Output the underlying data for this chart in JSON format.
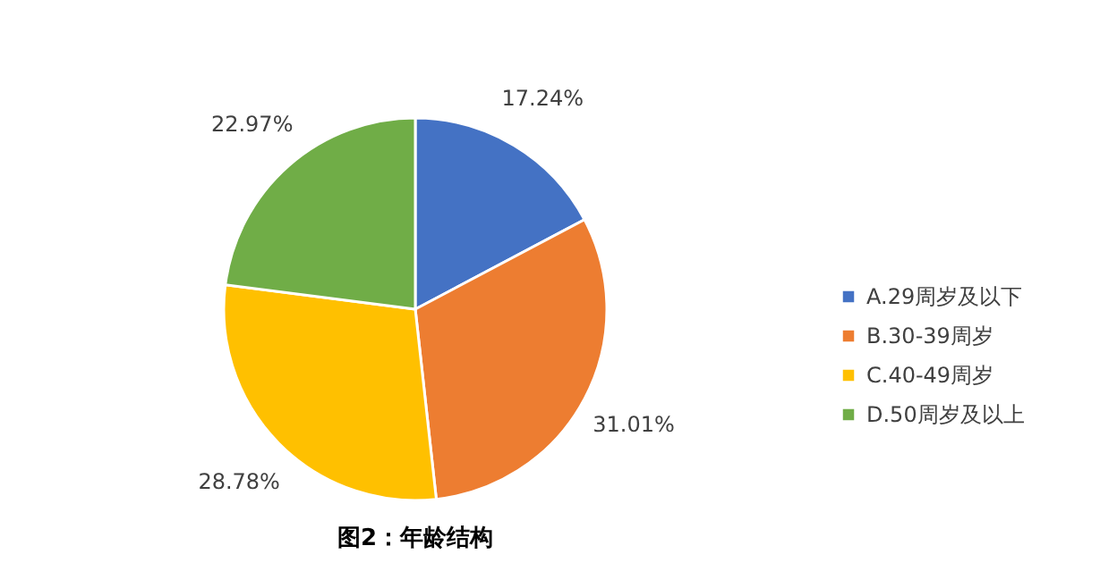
{
  "chart_data": {
    "type": "pie",
    "title": "图2：年龄结构",
    "categories": [
      "A.29周岁及以下",
      "B.30-39周岁",
      "C.40-49周岁",
      "D.50周岁及以上"
    ],
    "values": [
      17.24,
      31.01,
      28.78,
      22.97
    ],
    "colors": [
      "#4472c4",
      "#ed7d31",
      "#ffc000",
      "#70ad47"
    ],
    "value_labels": [
      "17.24%",
      "31.01%",
      "28.78%",
      "22.97%"
    ],
    "legend": "right"
  }
}
